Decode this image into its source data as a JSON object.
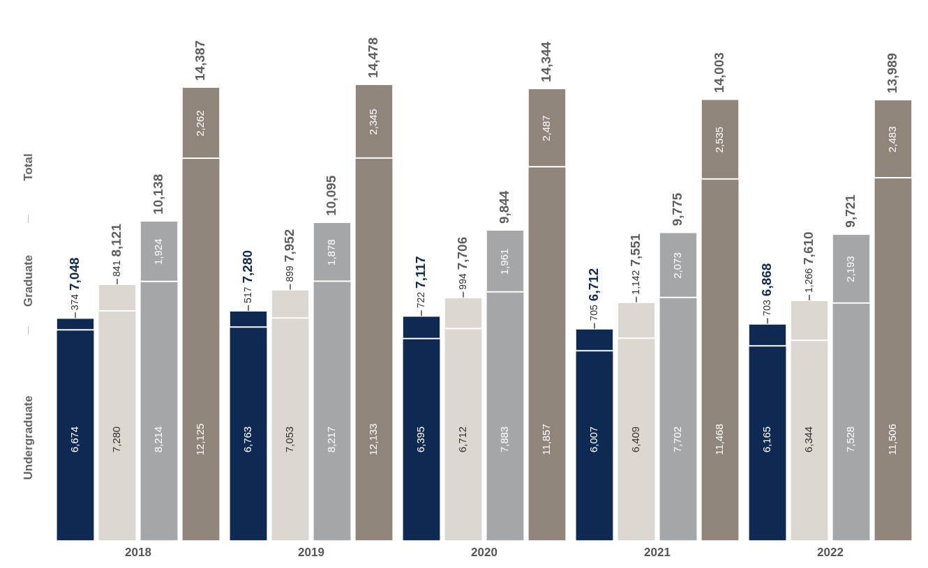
{
  "chart_data": [
    {
      "type": "bar",
      "stacked": true,
      "xlabel": "2018",
      "categories": [
        null,
        null,
        null,
        null
      ],
      "ylim": [
        0,
        17000
      ],
      "tick_labels": false,
      "annotations": [
        "Undergraduate",
        "Graduate",
        "Total"
      ],
      "series": [
        {
          "colors": [
            "#0f2a52",
            "#dcd8d1",
            "#a5a6a8",
            "#8f857b"
          ],
          "values": [
            6674,
            7280,
            8214,
            12125
          ],
          "value_labels": [
            "6,674",
            "7,280",
            "8,214",
            "12,125"
          ]
        },
        {
          "colors": [
            "#0f2a52",
            "#dcd8d1",
            "#a5a6a8",
            "#8f857b"
          ],
          "values": [
            374,
            841,
            1924,
            2262
          ],
          "value_labels": [
            "374",
            "841",
            "1,924",
            "2,262"
          ]
        }
      ],
      "totals": [
        "7,048",
        "8,121",
        "10,138",
        "14,387"
      ]
    },
    {
      "type": "bar",
      "stacked": true,
      "xlabel": "2019",
      "categories": [
        null,
        null,
        null,
        null
      ],
      "ylim": [
        0,
        17000
      ],
      "tick_labels": false,
      "series": [
        {
          "colors": [
            "#0f2a52",
            "#dcd8d1",
            "#a5a6a8",
            "#8f857b"
          ],
          "values": [
            6763,
            7053,
            8217,
            12133
          ],
          "value_labels": [
            "6,763",
            "7,053",
            "8,217",
            "12,133"
          ]
        },
        {
          "colors": [
            "#0f2a52",
            "#dcd8d1",
            "#a5a6a8",
            "#8f857b"
          ],
          "values": [
            517,
            899,
            1878,
            2345
          ],
          "value_labels": [
            "517",
            "899",
            "1,878",
            "2,345"
          ]
        }
      ],
      "totals": [
        "7,280",
        "7,952",
        "10,095",
        "14,478"
      ]
    },
    {
      "type": "bar",
      "stacked": true,
      "xlabel": "2020",
      "categories": [
        null,
        null,
        null,
        null
      ],
      "ylim": [
        0,
        17000
      ],
      "tick_labels": false,
      "series": [
        {
          "colors": [
            "#0f2a52",
            "#dcd8d1",
            "#a5a6a8",
            "#8f857b"
          ],
          "values": [
            6395,
            6712,
            7883,
            11857
          ],
          "value_labels": [
            "6,395",
            "6,712",
            "7,883",
            "11,857"
          ]
        },
        {
          "colors": [
            "#0f2a52",
            "#dcd8d1",
            "#a5a6a8",
            "#8f857b"
          ],
          "values": [
            722,
            994,
            1961,
            2487
          ],
          "value_labels": [
            "722",
            "994",
            "1,961",
            "2,487"
          ]
        }
      ],
      "totals": [
        "7,117",
        "7,706",
        "9,844",
        "14,344"
      ]
    },
    {
      "type": "bar",
      "stacked": true,
      "xlabel": "2021",
      "categories": [
        null,
        null,
        null,
        null
      ],
      "ylim": [
        0,
        17000
      ],
      "tick_labels": false,
      "series": [
        {
          "colors": [
            "#0f2a52",
            "#dcd8d1",
            "#a5a6a8",
            "#8f857b"
          ],
          "values": [
            6007,
            6409,
            7702,
            11468
          ],
          "value_labels": [
            "6,007",
            "6,409",
            "7,702",
            "11,468"
          ]
        },
        {
          "colors": [
            "#0f2a52",
            "#dcd8d1",
            "#a5a6a8",
            "#8f857b"
          ],
          "values": [
            705,
            1142,
            2073,
            2535
          ],
          "value_labels": [
            "705",
            "1,142",
            "2,073",
            "2,535"
          ]
        }
      ],
      "totals": [
        "6,712",
        "7,551",
        "9,775",
        "14,003"
      ]
    },
    {
      "type": "bar",
      "stacked": true,
      "xlabel": "2022",
      "categories": [
        null,
        null,
        null,
        null
      ],
      "ylim": [
        0,
        17000
      ],
      "tick_labels": false,
      "series": [
        {
          "colors": [
            "#0f2a52",
            "#dcd8d1",
            "#a5a6a8",
            "#8f857b"
          ],
          "values": [
            6165,
            6344,
            7528,
            11506
          ],
          "value_labels": [
            "6,165",
            "6,344",
            "7,528",
            "11,506"
          ]
        },
        {
          "colors": [
            "#0f2a52",
            "#dcd8d1",
            "#a5a6a8",
            "#8f857b"
          ],
          "values": [
            703,
            1266,
            2193,
            2483
          ],
          "value_labels": [
            "703",
            "1,266",
            "2,193",
            "2,483"
          ]
        }
      ],
      "totals": [
        "6,868",
        "7,610",
        "9,721",
        "13,989"
      ]
    }
  ]
}
